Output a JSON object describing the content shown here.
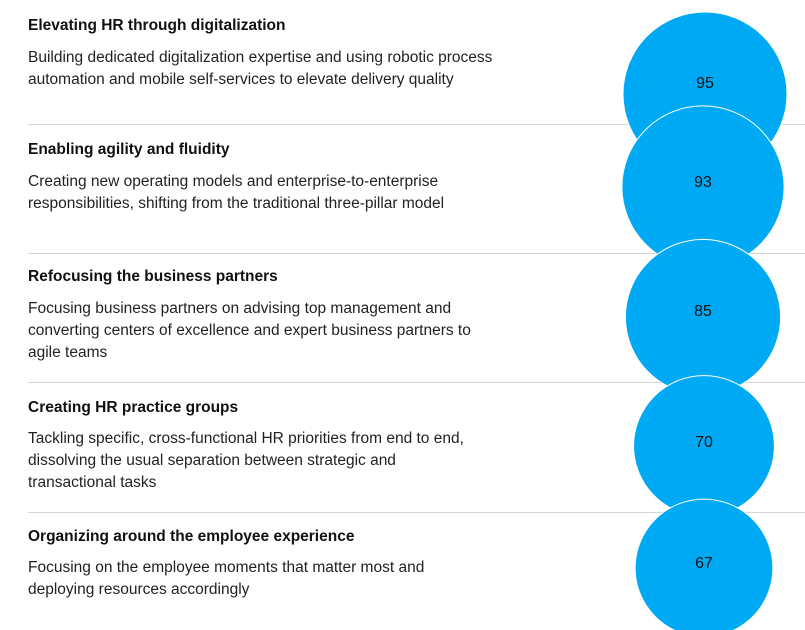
{
  "chart_data": {
    "type": "bubble",
    "bubble_color": "#00a9f4",
    "categories": [
      {
        "title": "Elevating HR through digitalization",
        "description": "Building dedicated digitalization expertise and using robotic process automation and mobile self-services to elevate delivery quality",
        "value": 95,
        "value_label": "95"
      },
      {
        "title": "Enabling agility and fluidity",
        "description": "Creating new operating models and enterprise-to-enterprise responsibilities, shifting from the traditional three-pillar model",
        "value": 93,
        "value_label": "93"
      },
      {
        "title": "Refocusing the business partners",
        "description": "Focusing business partners on advising top management and converting centers of excellence and expert business partners to agile teams",
        "value": 85,
        "value_label": "85"
      },
      {
        "title": "Creating HR practice groups",
        "description": "Tackling specific, cross-functional HR priorities from end to end, dissolving the usual separation between strategic and transactional tasks",
        "value": 70,
        "value_label": "70"
      },
      {
        "title": "Organizing around the employee experience",
        "description": "Focusing on the employee moments that matter most and deploying resources accordingly",
        "value": 67,
        "value_label": "67"
      }
    ]
  }
}
